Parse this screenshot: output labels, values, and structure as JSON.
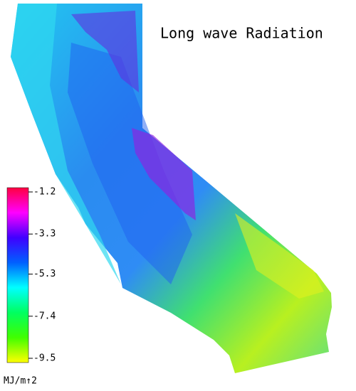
{
  "title": "Long wave Radiation",
  "legend": {
    "label": "MJ/m↑2",
    "range": [
      -1.2,
      -9.5
    ],
    "ticks": [
      -1.2,
      -3.3,
      -5.3,
      -7.4,
      -9.5
    ],
    "colors": [
      "#ff0040",
      "#ff00ff",
      "#4000ff",
      "#0060ff",
      "#00ffff",
      "#00ff60",
      "#40ff00",
      "#ffff00"
    ]
  }
}
